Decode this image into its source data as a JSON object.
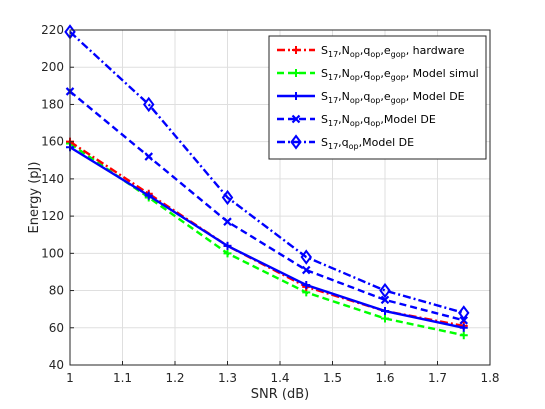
{
  "chart_data": {
    "type": "line",
    "xlabel": "SNR (dB)",
    "ylabel": "Energy (pJ)",
    "xlim": [
      1,
      1.8
    ],
    "ylim": [
      40,
      220
    ],
    "xticks": [
      "1",
      "1.1",
      "1.2",
      "1.3",
      "1.4",
      "1.5",
      "1.6",
      "1.7",
      "1.8"
    ],
    "yticks": [
      "40",
      "60",
      "80",
      "100",
      "120",
      "140",
      "160",
      "180",
      "200",
      "220"
    ],
    "grid": true,
    "legend_position": "top-right",
    "x": [
      1,
      1.15,
      1.3,
      1.45,
      1.6,
      1.75
    ],
    "series": [
      {
        "name": "S17,Nop,qop,egop, hardware",
        "legend_parts": [
          [
            "S",
            ""
          ],
          [
            "17",
            "sub"
          ],
          [
            ",N",
            ""
          ],
          [
            "op",
            "sub"
          ],
          [
            ",q",
            ""
          ],
          [
            "op",
            "sub"
          ],
          [
            ",e",
            ""
          ],
          [
            "gop",
            "sub"
          ],
          [
            ", hardware",
            ""
          ]
        ],
        "values": [
          160,
          132,
          104,
          82,
          69,
          61
        ],
        "color": "#ff0000",
        "dash": "dashdot",
        "marker": "plus"
      },
      {
        "name": "S17,Nop,qop,egop, Model simul",
        "legend_parts": [
          [
            "S",
            ""
          ],
          [
            "17",
            "sub"
          ],
          [
            ",N",
            ""
          ],
          [
            "op",
            "sub"
          ],
          [
            ",q",
            ""
          ],
          [
            "op",
            "sub"
          ],
          [
            ",e",
            ""
          ],
          [
            "gop",
            "sub"
          ],
          [
            ", Model simul",
            ""
          ]
        ],
        "values": [
          159,
          130,
          100,
          79,
          65,
          56
        ],
        "color": "#00ff00",
        "dash": "dashed",
        "marker": "plus"
      },
      {
        "name": "S17,Nop,qop,egop, Model DE",
        "legend_parts": [
          [
            "S",
            ""
          ],
          [
            "17",
            "sub"
          ],
          [
            ",N",
            ""
          ],
          [
            "op",
            "sub"
          ],
          [
            ",q",
            ""
          ],
          [
            "op",
            "sub"
          ],
          [
            ",e",
            ""
          ],
          [
            "gop",
            "sub"
          ],
          [
            ", Model DE",
            ""
          ]
        ],
        "values": [
          157,
          131,
          104,
          83,
          69,
          60
        ],
        "color": "#0000ff",
        "dash": "solid",
        "marker": "plus"
      },
      {
        "name": "S17,Nop,qop,Model DE",
        "legend_parts": [
          [
            "S",
            ""
          ],
          [
            "17",
            "sub"
          ],
          [
            ",N",
            ""
          ],
          [
            "op",
            "sub"
          ],
          [
            ",q",
            ""
          ],
          [
            "op",
            "sub"
          ],
          [
            ",Model DE",
            ""
          ]
        ],
        "values": [
          187,
          152,
          117,
          91,
          75,
          64
        ],
        "color": "#0000ff",
        "dash": "dashed",
        "marker": "x"
      },
      {
        "name": "S17,qop,Model DE",
        "legend_parts": [
          [
            "S",
            ""
          ],
          [
            "17",
            "sub"
          ],
          [
            ",q",
            ""
          ],
          [
            "op",
            "sub"
          ],
          [
            ",Model DE",
            ""
          ]
        ],
        "values": [
          219,
          180,
          130,
          98,
          80,
          68
        ],
        "color": "#0000ff",
        "dash": "dashdot",
        "marker": "diamond"
      }
    ]
  }
}
